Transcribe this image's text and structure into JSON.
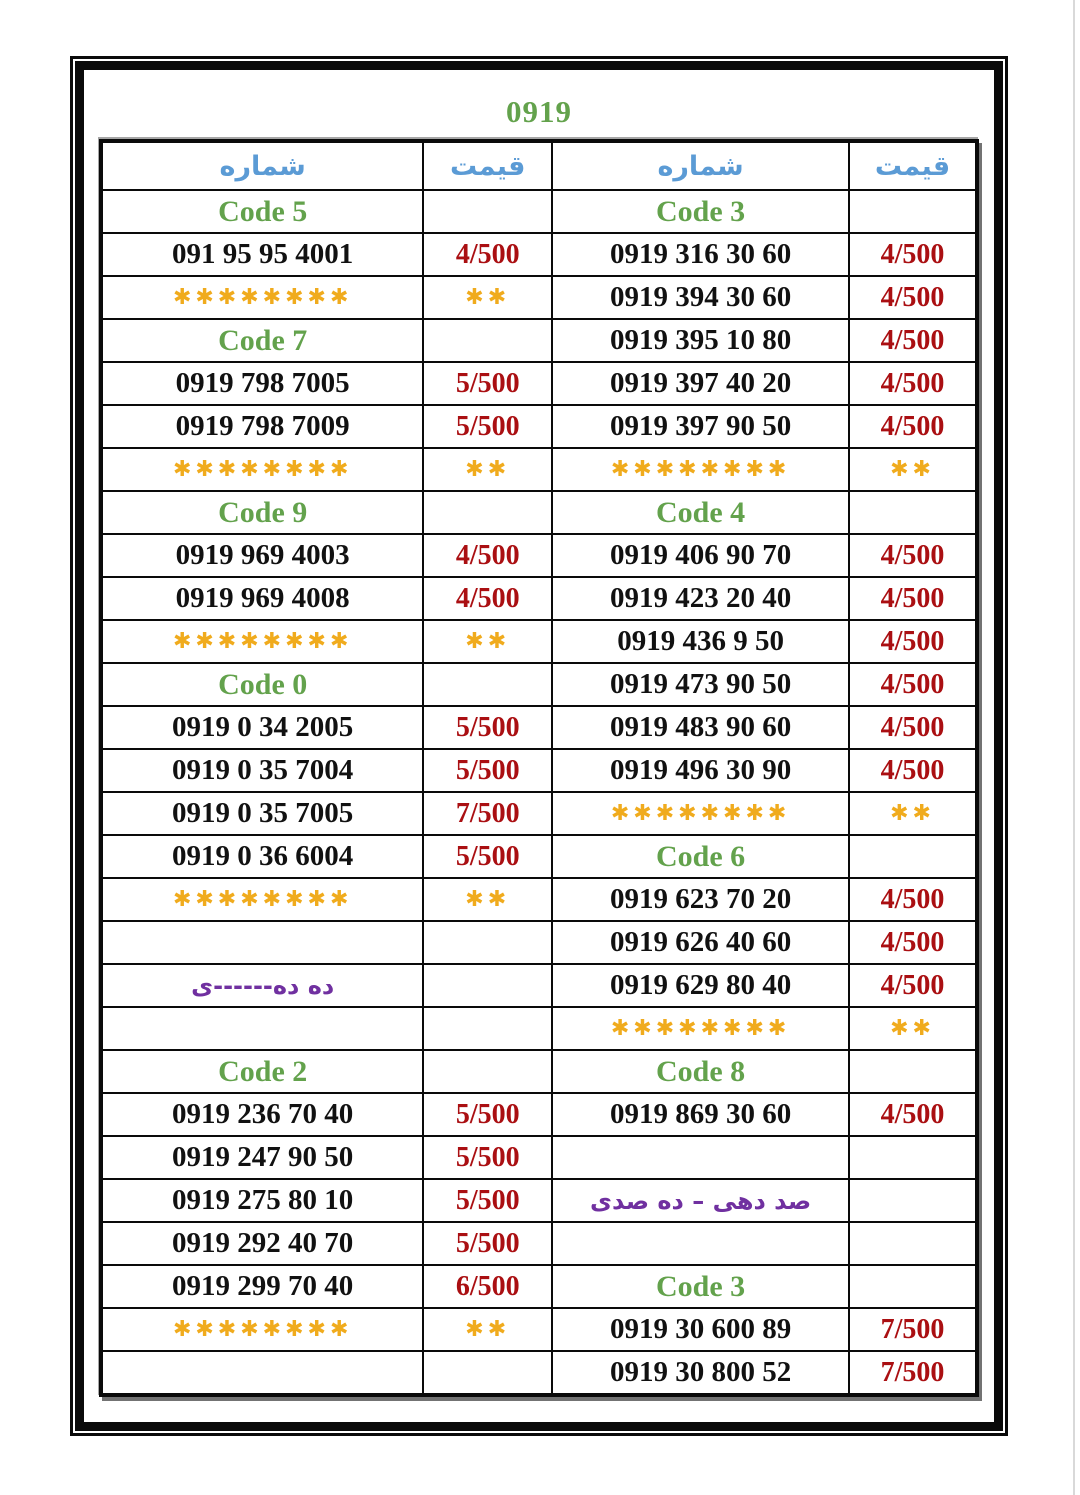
{
  "page": {
    "title": "0919"
  },
  "colors": {
    "code_green": "#63a24c",
    "price_red": "#aa0f12",
    "header_blue": "#5b9bd5",
    "stars_gold": "#f0ab1d",
    "note_purple": "#7030a0",
    "number_black": "#111111",
    "border_black": "#0a0a0a"
  },
  "table": {
    "headers": [
      {
        "label": "شماره"
      },
      {
        "label": "قیمت"
      },
      {
        "label": "شماره"
      },
      {
        "label": "قیمت"
      }
    ],
    "rows": [
      [
        {
          "text": "Code 5",
          "kind": "code"
        },
        {
          "text": "",
          "kind": "empty"
        },
        {
          "text": "Code 3",
          "kind": "code"
        },
        {
          "text": "",
          "kind": "empty"
        }
      ],
      [
        {
          "text": "091 95 95 4001",
          "kind": "number"
        },
        {
          "text": "4/500",
          "kind": "price"
        },
        {
          "text": "0919 316 30 60",
          "kind": "number"
        },
        {
          "text": "4/500",
          "kind": "price"
        }
      ],
      [
        {
          "text": "✱✱✱✱✱✱✱✱",
          "kind": "stars"
        },
        {
          "text": "✱✱",
          "kind": "stars"
        },
        {
          "text": "0919 394 30 60",
          "kind": "number"
        },
        {
          "text": "4/500",
          "kind": "price"
        }
      ],
      [
        {
          "text": "Code 7",
          "kind": "code"
        },
        {
          "text": "",
          "kind": "empty"
        },
        {
          "text": "0919 395 10 80",
          "kind": "number"
        },
        {
          "text": "4/500",
          "kind": "price"
        }
      ],
      [
        {
          "text": "0919 798 7005",
          "kind": "number"
        },
        {
          "text": "5/500",
          "kind": "price"
        },
        {
          "text": "0919 397 40 20",
          "kind": "number"
        },
        {
          "text": "4/500",
          "kind": "price"
        }
      ],
      [
        {
          "text": "0919 798 7009",
          "kind": "number"
        },
        {
          "text": "5/500",
          "kind": "price"
        },
        {
          "text": "0919 397 90 50",
          "kind": "number"
        },
        {
          "text": "4/500",
          "kind": "price"
        }
      ],
      [
        {
          "text": "✱✱✱✱✱✱✱✱",
          "kind": "stars"
        },
        {
          "text": "✱✱",
          "kind": "stars"
        },
        {
          "text": "✱✱✱✱✱✱✱✱",
          "kind": "stars"
        },
        {
          "text": "✱✱",
          "kind": "stars"
        }
      ],
      [
        {
          "text": "Code 9",
          "kind": "code"
        },
        {
          "text": "",
          "kind": "empty"
        },
        {
          "text": "Code 4",
          "kind": "code"
        },
        {
          "text": "",
          "kind": "empty"
        }
      ],
      [
        {
          "text": "0919 969 4003",
          "kind": "number"
        },
        {
          "text": "4/500",
          "kind": "price"
        },
        {
          "text": "0919 406 90 70",
          "kind": "number"
        },
        {
          "text": "4/500",
          "kind": "price"
        }
      ],
      [
        {
          "text": "0919 969 4008",
          "kind": "number"
        },
        {
          "text": "4/500",
          "kind": "price"
        },
        {
          "text": "0919 423 20 40",
          "kind": "number"
        },
        {
          "text": "4/500",
          "kind": "price"
        }
      ],
      [
        {
          "text": "✱✱✱✱✱✱✱✱",
          "kind": "stars"
        },
        {
          "text": "✱✱",
          "kind": "stars"
        },
        {
          "text": "0919 436 9 50",
          "kind": "number"
        },
        {
          "text": "4/500",
          "kind": "price"
        }
      ],
      [
        {
          "text": "Code 0",
          "kind": "code"
        },
        {
          "text": "",
          "kind": "empty"
        },
        {
          "text": "0919 473 90 50",
          "kind": "number"
        },
        {
          "text": "4/500",
          "kind": "price"
        }
      ],
      [
        {
          "text": "0919 0 34 2005",
          "kind": "number"
        },
        {
          "text": "5/500",
          "kind": "price"
        },
        {
          "text": "0919 483 90 60",
          "kind": "number"
        },
        {
          "text": "4/500",
          "kind": "price"
        }
      ],
      [
        {
          "text": "0919 0 35 7004",
          "kind": "number"
        },
        {
          "text": "5/500",
          "kind": "price"
        },
        {
          "text": "0919 496 30 90",
          "kind": "number"
        },
        {
          "text": "4/500",
          "kind": "price"
        }
      ],
      [
        {
          "text": "0919 0 35 7005",
          "kind": "number"
        },
        {
          "text": "7/500",
          "kind": "price"
        },
        {
          "text": "✱✱✱✱✱✱✱✱",
          "kind": "stars"
        },
        {
          "text": "✱✱",
          "kind": "stars"
        }
      ],
      [
        {
          "text": "0919 0 36 6004",
          "kind": "number"
        },
        {
          "text": "5/500",
          "kind": "price"
        },
        {
          "text": "Code 6",
          "kind": "code"
        },
        {
          "text": "",
          "kind": "empty"
        }
      ],
      [
        {
          "text": "✱✱✱✱✱✱✱✱",
          "kind": "stars"
        },
        {
          "text": "✱✱",
          "kind": "stars"
        },
        {
          "text": "0919 623 70 20",
          "kind": "number"
        },
        {
          "text": "4/500",
          "kind": "price"
        }
      ],
      [
        {
          "text": "",
          "kind": "empty"
        },
        {
          "text": "",
          "kind": "empty"
        },
        {
          "text": "0919 626 40 60",
          "kind": "number"
        },
        {
          "text": "4/500",
          "kind": "price"
        }
      ],
      [
        {
          "text": "ده ده------ی",
          "kind": "note"
        },
        {
          "text": "",
          "kind": "empty"
        },
        {
          "text": "0919 629 80 40",
          "kind": "number"
        },
        {
          "text": "4/500",
          "kind": "price"
        }
      ],
      [
        {
          "text": "",
          "kind": "empty"
        },
        {
          "text": "",
          "kind": "empty"
        },
        {
          "text": "✱✱✱✱✱✱✱✱",
          "kind": "stars"
        },
        {
          "text": "✱✱",
          "kind": "stars"
        }
      ],
      [
        {
          "text": "Code 2",
          "kind": "code"
        },
        {
          "text": "",
          "kind": "empty"
        },
        {
          "text": "Code 8",
          "kind": "code"
        },
        {
          "text": "",
          "kind": "empty"
        }
      ],
      [
        {
          "text": "0919 236 70 40",
          "kind": "number"
        },
        {
          "text": "5/500",
          "kind": "price"
        },
        {
          "text": "0919 869 30 60",
          "kind": "number"
        },
        {
          "text": "4/500",
          "kind": "price"
        }
      ],
      [
        {
          "text": "0919 247 90 50",
          "kind": "number"
        },
        {
          "text": "5/500",
          "kind": "price"
        },
        {
          "text": "",
          "kind": "empty"
        },
        {
          "text": "",
          "kind": "empty"
        }
      ],
      [
        {
          "text": "0919 275 80 10",
          "kind": "number"
        },
        {
          "text": "5/500",
          "kind": "price"
        },
        {
          "text": "صد دهی – ده صدی",
          "kind": "note"
        },
        {
          "text": "",
          "kind": "empty"
        }
      ],
      [
        {
          "text": "0919 292 40 70",
          "kind": "number"
        },
        {
          "text": "5/500",
          "kind": "price"
        },
        {
          "text": "",
          "kind": "empty"
        },
        {
          "text": "",
          "kind": "empty"
        }
      ],
      [
        {
          "text": "0919 299 70 40",
          "kind": "number"
        },
        {
          "text": "6/500",
          "kind": "price"
        },
        {
          "text": "Code 3",
          "kind": "code"
        },
        {
          "text": "",
          "kind": "empty"
        }
      ],
      [
        {
          "text": "✱✱✱✱✱✱✱✱",
          "kind": "stars"
        },
        {
          "text": "✱✱",
          "kind": "stars"
        },
        {
          "text": "0919 30 600 89",
          "kind": "number"
        },
        {
          "text": "7/500",
          "kind": "price"
        }
      ],
      [
        {
          "text": "",
          "kind": "empty"
        },
        {
          "text": "",
          "kind": "empty"
        },
        {
          "text": "0919 30 800 52",
          "kind": "number"
        },
        {
          "text": "7/500",
          "kind": "price"
        }
      ]
    ]
  }
}
